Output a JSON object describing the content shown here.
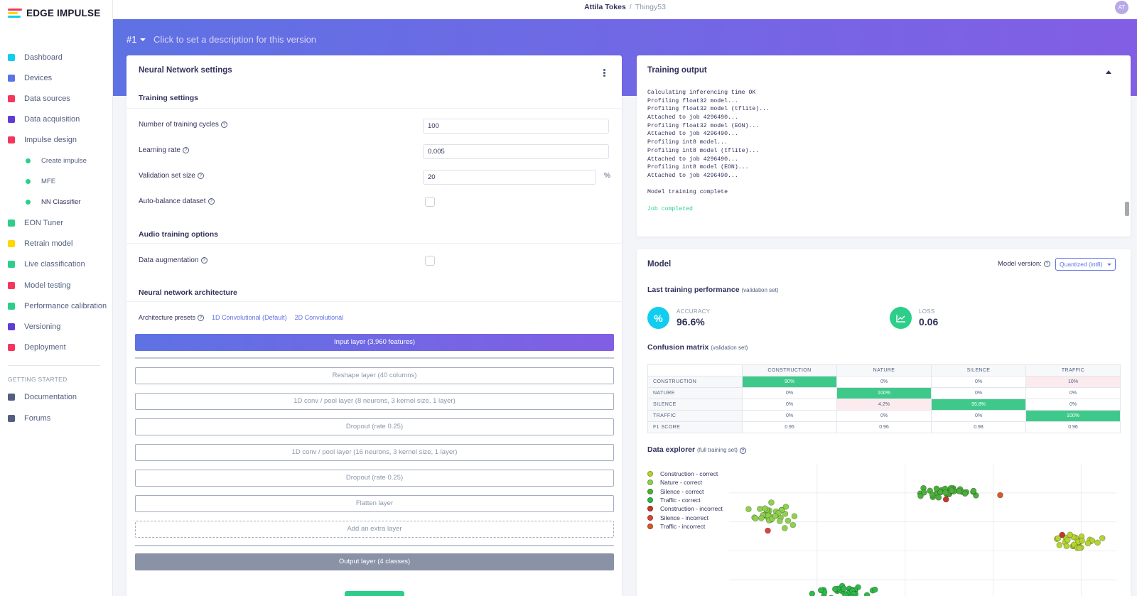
{
  "app": {
    "logo_text": "EDGE IMPULSE"
  },
  "topbar": {
    "user": "Attila Tokes",
    "separator": "/",
    "project": "Thingy53",
    "avatar_initials": "AT"
  },
  "sidebar": {
    "items": [
      {
        "label": "Dashboard",
        "icon": "monitor-icon",
        "color": "#11cdef"
      },
      {
        "label": "Devices",
        "icon": "devices-icon",
        "color": "#5e72e4"
      },
      {
        "label": "Data sources",
        "icon": "wand-icon",
        "color": "#f5365c"
      },
      {
        "label": "Data acquisition",
        "icon": "database-icon",
        "color": "#5e3dd6"
      },
      {
        "label": "Impulse design",
        "icon": "pulse-icon",
        "color": "#f5365c"
      }
    ],
    "subitems": [
      {
        "label": "Create impulse"
      },
      {
        "label": "MFE"
      },
      {
        "label": "NN Classifier"
      }
    ],
    "items2": [
      {
        "label": "EON Tuner",
        "icon": "compass-icon",
        "color": "#2dce89"
      },
      {
        "label": "Retrain model",
        "icon": "shuffle-icon",
        "color": "#ffd600"
      },
      {
        "label": "Live classification",
        "icon": "nodes-icon",
        "color": "#2dce89"
      },
      {
        "label": "Model testing",
        "icon": "clipboard-icon",
        "color": "#f5365c"
      },
      {
        "label": "Performance calibration",
        "icon": "bar-chart-icon",
        "color": "#2dce89"
      },
      {
        "label": "Versioning",
        "icon": "branch-icon",
        "color": "#5e3dd6"
      },
      {
        "label": "Deployment",
        "icon": "gift-icon",
        "color": "#f5365c"
      }
    ],
    "getting_started_heading": "GETTING STARTED",
    "items3": [
      {
        "label": "Documentation",
        "icon": "docs-icon",
        "color": "#525f7f"
      },
      {
        "label": "Forums",
        "icon": "chat-icon",
        "color": "#525f7f"
      }
    ]
  },
  "banner": {
    "version": "#1",
    "description_placeholder": "Click to set a description for this version"
  },
  "nn_settings": {
    "title": "Neural Network settings",
    "training_settings_heading": "Training settings",
    "cycles_label": "Number of training cycles",
    "cycles_value": "100",
    "lr_label": "Learning rate",
    "lr_value": "0.005",
    "val_label": "Validation set size",
    "val_value": "20",
    "val_unit": "%",
    "autobalance_label": "Auto-balance dataset",
    "audio_heading": "Audio training options",
    "augmentation_label": "Data augmentation",
    "arch_heading": "Neural network architecture",
    "presets_label": "Architecture presets",
    "preset_1d": "1D Convolutional (Default)",
    "preset_2d": "2D Convolutional",
    "input_layer": "Input layer (3,960 features)",
    "layers": [
      "Reshape layer (40 columns)",
      "1D conv / pool layer (8 neurons, 3 kernel size, 1 layer)",
      "Dropout (rate 0.25)",
      "1D conv / pool layer (16 neurons, 3 kernel size, 1 layer)",
      "Dropout (rate 0.25)",
      "Flatten layer"
    ],
    "add_layer": "Add an extra layer",
    "output_layer": "Output layer (4 classes)"
  },
  "training_output": {
    "title": "Training output",
    "lines": [
      "Calculating inferencing time OK",
      "Profiling float32 model...",
      "Profiling float32 model (tflite)...",
      "Attached to job 4296490...",
      "Profiling float32 model (EON)...",
      "Attached to job 4296490...",
      "Profiling int8 model...",
      "Profiling int8 model (tflite)...",
      "Attached to job 4296490...",
      "Profiling int8 model (EON)...",
      "Attached to job 4296490...",
      "",
      "Model training complete",
      ""
    ],
    "job_status": "Job completed"
  },
  "model": {
    "title": "Model",
    "version_label": "Model version:",
    "version_value": "Quantized (int8)",
    "last_perf_heading": "Last training performance",
    "last_perf_note": "(validation set)",
    "accuracy_label": "ACCURACY",
    "accuracy_value": "96.6%",
    "loss_label": "LOSS",
    "loss_value": "0.06",
    "cm_heading": "Confusion matrix",
    "cm_note": "(validation set)",
    "explorer_heading": "Data explorer",
    "explorer_note": "(full training set)"
  },
  "confusion_matrix": {
    "columns": [
      "CONSTRUCTION",
      "NATURE",
      "SILENCE",
      "TRAFFIC"
    ],
    "rows": [
      {
        "label": "CONSTRUCTION",
        "cells": [
          "90%",
          "0%",
          "0%",
          "10%"
        ]
      },
      {
        "label": "NATURE",
        "cells": [
          "0%",
          "100%",
          "0%",
          "0%"
        ]
      },
      {
        "label": "SILENCE",
        "cells": [
          "0%",
          "4.2%",
          "95.8%",
          "0%"
        ]
      },
      {
        "label": "TRAFFIC",
        "cells": [
          "0%",
          "0%",
          "0%",
          "100%"
        ]
      },
      {
        "label": "F1 SCORE",
        "cells": [
          "0.95",
          "0.96",
          "0.98",
          "0.96"
        ]
      }
    ]
  },
  "chart_data": {
    "type": "scatter",
    "title": "Data explorer",
    "legend": [
      {
        "name": "Construction - correct",
        "color": "#b5d334"
      },
      {
        "name": "Nature - correct",
        "color": "#8fd14f"
      },
      {
        "name": "Silence - correct",
        "color": "#4caf3c"
      },
      {
        "name": "Traffic - correct",
        "color": "#2fb84a"
      },
      {
        "name": "Construction - incorrect",
        "color": "#c0392b"
      },
      {
        "name": "Silence - incorrect",
        "color": "#d64541"
      },
      {
        "name": "Traffic - incorrect",
        "color": "#d35a2a"
      }
    ],
    "clusters": [
      {
        "series": "Nature - correct",
        "cx": 0.12,
        "cy": 0.36,
        "n": 34,
        "sx": 0.045,
        "sy": 0.055
      },
      {
        "series": "Silence - correct",
        "cx": 0.58,
        "cy": 0.2,
        "n": 36,
        "sx": 0.06,
        "sy": 0.025
      },
      {
        "series": "Construction - correct",
        "cx": 0.9,
        "cy": 0.55,
        "n": 28,
        "sx": 0.04,
        "sy": 0.035
      },
      {
        "series": "Traffic - correct",
        "cx": 0.3,
        "cy": 0.91,
        "n": 34,
        "sx": 0.065,
        "sy": 0.035
      }
    ],
    "outliers": [
      {
        "series": "Silence - incorrect",
        "x": 0.1,
        "y": 0.47
      },
      {
        "series": "Traffic - incorrect",
        "x": 0.7,
        "y": 0.22
      },
      {
        "series": "Construction - incorrect",
        "x": 0.56,
        "y": 0.25
      },
      {
        "series": "Construction - incorrect",
        "x": 0.86,
        "y": 0.5
      }
    ],
    "grid": true
  }
}
